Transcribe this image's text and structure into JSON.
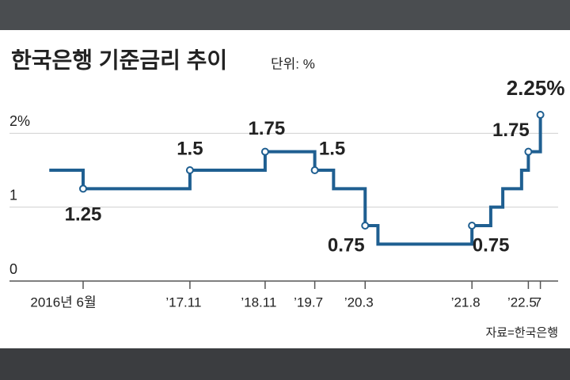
{
  "chart_data": {
    "type": "line",
    "drawstyle": "steps-post",
    "title": "한국은행 기준금리 추이",
    "unit": "단위: %",
    "source": "자료=한국은행",
    "color": "#1f5f91",
    "x": [
      2016.05,
      2016.5,
      2017.92,
      2018.92,
      2019.58,
      2019.83,
      2020.25,
      2020.42,
      2021.67,
      2021.92,
      2022.08,
      2022.33,
      2022.42,
      2022.58
    ],
    "values": [
      1.5,
      1.25,
      1.5,
      1.75,
      1.5,
      1.25,
      0.75,
      0.5,
      0.75,
      1.0,
      1.25,
      1.5,
      1.75,
      2.25
    ],
    "value_labels": [
      null,
      "1.25",
      "1.5",
      "1.75",
      "1.5",
      null,
      "0.75",
      null,
      "0.75",
      null,
      null,
      null,
      "1.75",
      "2.25%"
    ],
    "xlim": [
      2016.0,
      2022.75
    ],
    "xticks": [
      {
        "value": 2016.5,
        "label": "2016년 6월"
      },
      {
        "value": 2017.92,
        "label": "’17.11"
      },
      {
        "value": 2018.92,
        "label": "’18.11"
      },
      {
        "value": 2019.58,
        "label": "’19.7"
      },
      {
        "value": 2020.25,
        "label": "’20.3"
      },
      {
        "value": 2021.67,
        "label": "’21.8"
      },
      {
        "value": 2022.42,
        "label": "’22.5"
      },
      {
        "value": 2022.58,
        "label": "7"
      }
    ],
    "ylim": [
      0,
      2.4
    ],
    "yticks": [
      0,
      1,
      {
        "value": 2,
        "label": "2%"
      }
    ],
    "grid": true
  }
}
